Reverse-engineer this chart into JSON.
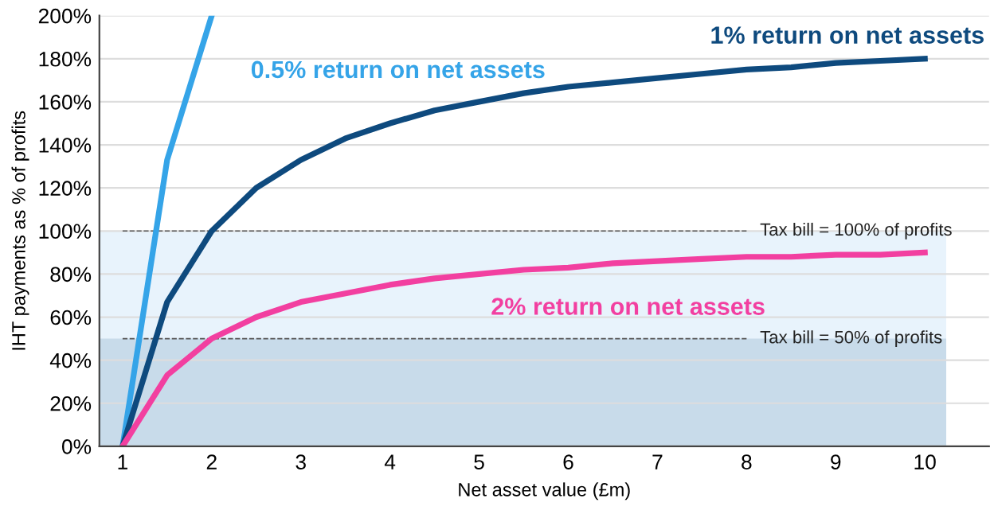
{
  "chart_data": {
    "type": "line",
    "xlabel": "Net asset value (£m)",
    "ylabel": "IHT payments as % of profits",
    "x": [
      1,
      1.5,
      2,
      2.5,
      3,
      3.5,
      4,
      4.5,
      5,
      5.5,
      6,
      6.5,
      7,
      7.5,
      8,
      8.5,
      9,
      9.5,
      10
    ],
    "series": [
      {
        "name": "0.5% return on net assets",
        "color": "#35a4e8",
        "x": [
          1,
          1.5,
          2
        ],
        "values": [
          0,
          133,
          200
        ]
      },
      {
        "name": "1% return on net assets",
        "color": "#0e4a7e",
        "values": [
          0,
          67,
          100,
          120,
          133,
          143,
          150,
          156,
          160,
          164,
          167,
          169,
          171,
          173,
          175,
          176,
          178,
          179,
          180
        ]
      },
      {
        "name": "2% return on net assets",
        "color": "#f23fa0",
        "values": [
          0,
          33,
          50,
          60,
          67,
          71,
          75,
          78,
          80,
          82,
          83,
          85,
          86,
          87,
          88,
          88,
          89,
          89,
          90
        ]
      }
    ],
    "xlim": [
      0.74,
      10.72
    ],
    "xticks": [
      1,
      2,
      3,
      4,
      5,
      6,
      7,
      8,
      9,
      10
    ],
    "ylim": [
      0,
      200
    ],
    "yticks": [
      {
        "value": 0,
        "label": "0%"
      },
      {
        "value": 20,
        "label": "20%"
      },
      {
        "value": 40,
        "label": "40%"
      },
      {
        "value": 60,
        "label": "60%"
      },
      {
        "value": 80,
        "label": "80%"
      },
      {
        "value": 100,
        "label": "100%"
      },
      {
        "value": 120,
        "label": "120%"
      },
      {
        "value": 140,
        "label": "140%"
      },
      {
        "value": 160,
        "label": "160%"
      },
      {
        "value": 180,
        "label": "180%"
      },
      {
        "value": 200,
        "label": "200%"
      }
    ],
    "bands": [
      {
        "axis": "y",
        "from": 0,
        "to": 100,
        "color": "#e8f3fc"
      },
      {
        "axis": "y",
        "from": 0,
        "to": 50,
        "color": "#c8dbea"
      }
    ],
    "ref_lines": [
      {
        "axis": "y",
        "value": 100,
        "label": "Tax bill = 100% of profits",
        "color": "#555555",
        "line_style": "dashed"
      },
      {
        "axis": "y",
        "value": 50,
        "label": "Tax bill = 50% of profits",
        "color": "#555555",
        "line_style": "dashed"
      }
    ],
    "grid": "y",
    "legend": false,
    "marker": "none",
    "line_style": "solid"
  }
}
